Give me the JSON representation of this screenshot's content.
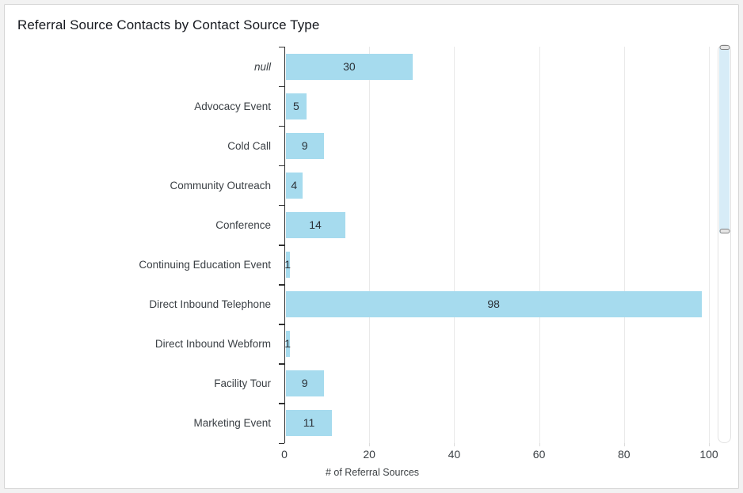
{
  "chart": {
    "title": "Referral Source Contacts by Contact Source Type",
    "xlabel": "# of Referral Sources"
  },
  "chart_data": {
    "type": "bar",
    "orientation": "horizontal",
    "title": "Referral Source Contacts by Contact Source Type",
    "categories": [
      "null",
      "Advocacy Event",
      "Cold Call",
      "Community Outreach",
      "Conference",
      "Continuing Education Event",
      "Direct Inbound Telephone",
      "Direct Inbound Webform",
      "Facility Tour",
      "Marketing Event"
    ],
    "values": [
      30,
      5,
      9,
      4,
      14,
      1,
      98,
      1,
      9,
      11
    ],
    "xlabel": "# of Referral Sources",
    "ylabel": "",
    "xlim": [
      0,
      101.7
    ],
    "x_ticks": [
      0,
      20,
      40,
      60,
      80,
      100
    ],
    "grid": "vertical",
    "value_labels": true,
    "legend": "none",
    "null_category_italic": true,
    "colors": {
      "bar": "#a6dbee",
      "grid": "#e9e9e9",
      "axis": "#2e2e2e",
      "title_text": "#16191f",
      "label_text": "#3b4045",
      "scroll_fill": "#d7ecf7"
    }
  },
  "scrollbar": {
    "visible_range_top_fraction": 0.0,
    "visible_range_bottom_fraction": 0.47
  }
}
